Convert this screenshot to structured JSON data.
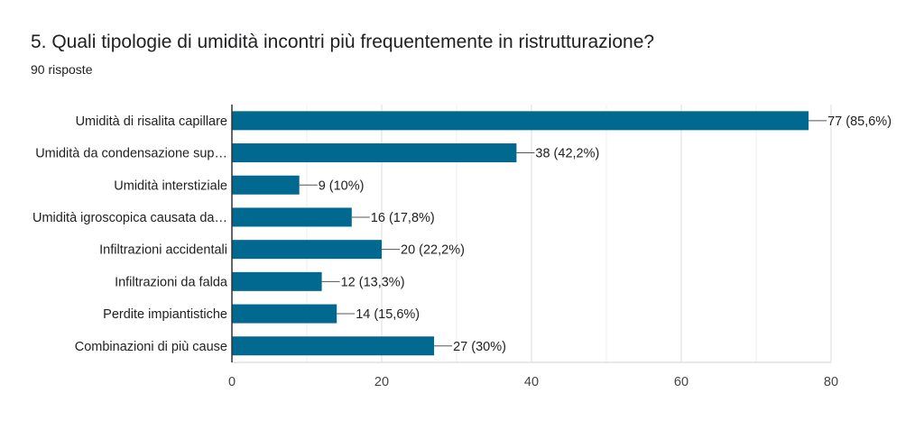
{
  "question": {
    "title": "5. Quali tipologie di umidità incontri più frequentemente in ristrutturazione?",
    "response_count": "90 risposte"
  },
  "colors": {
    "bar": "#01698f",
    "grid": "#e8e8e8",
    "axis": "#333333",
    "text": "#212121",
    "tick_text": "#444444"
  },
  "chart_data": {
    "type": "bar",
    "orientation": "horizontal",
    "title": "5. Quali tipologie di umidità incontri più frequentemente in ristrutturazione?",
    "subtitle": "90 risposte",
    "categories": [
      "Umidità di risalita capillare",
      "Umidità da condensazione sup…",
      "Umidità interstiziale",
      "Umidità igroscopica causata da…",
      "Infiltrazioni accidentali",
      "Infiltrazioni da falda",
      "Perdite impiantistiche",
      "Combinazioni di più cause"
    ],
    "values": [
      77,
      38,
      9,
      16,
      20,
      12,
      14,
      27
    ],
    "data_labels": [
      "77 (85,6%)",
      "38 (42,2%)",
      "9 (10%)",
      "16 (17,8%)",
      "20 (22,2%)",
      "12 (13,3%)",
      "14 (15,6%)",
      "27 (30%)"
    ],
    "xlim": [
      0,
      80
    ],
    "xticks": [
      0,
      20,
      40,
      60,
      80
    ],
    "xtick_labels": [
      "0",
      "20",
      "40",
      "60",
      "80"
    ],
    "minor_grid_step": 10,
    "grid": true,
    "legend": "none"
  }
}
